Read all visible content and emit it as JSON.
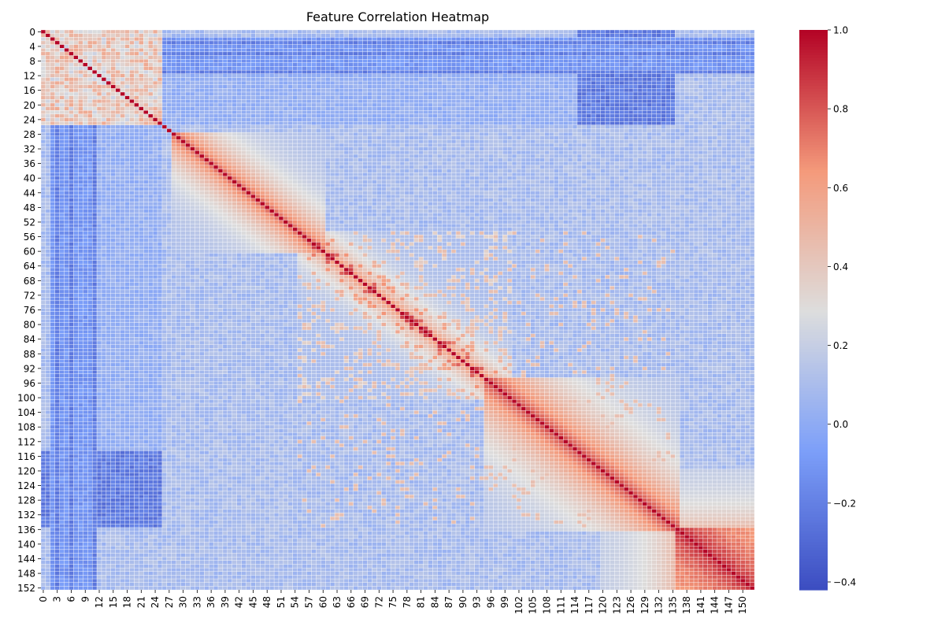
{
  "chart_data": {
    "type": "heatmap",
    "title": "Feature Correlation Heatmap",
    "xlabel": "",
    "ylabel": "",
    "n": 153,
    "x_tick_labels": [
      "0",
      "3",
      "6",
      "9",
      "12",
      "15",
      "18",
      "21",
      "24",
      "27",
      "30",
      "33",
      "36",
      "39",
      "42",
      "45",
      "48",
      "51",
      "54",
      "57",
      "60",
      "63",
      "66",
      "69",
      "72",
      "75",
      "78",
      "81",
      "84",
      "87",
      "90",
      "93",
      "96",
      "99",
      "102",
      "105",
      "108",
      "111",
      "114",
      "117",
      "120",
      "123",
      "126",
      "129",
      "132",
      "135",
      "138",
      "141",
      "144",
      "147",
      "150"
    ],
    "y_tick_labels": [
      "0",
      "4",
      "8",
      "12",
      "16",
      "20",
      "24",
      "28",
      "32",
      "36",
      "40",
      "44",
      "48",
      "52",
      "56",
      "60",
      "64",
      "68",
      "72",
      "76",
      "80",
      "84",
      "88",
      "92",
      "96",
      "100",
      "104",
      "108",
      "112",
      "116",
      "120",
      "124",
      "128",
      "132",
      "136",
      "140",
      "144",
      "148",
      "152"
    ],
    "colorbar": {
      "min": -0.42,
      "max": 1.0,
      "colormap": "coolwarm",
      "tick_values": [
        -0.4,
        -0.2,
        0.0,
        0.2,
        0.4,
        0.6,
        0.8,
        1.0
      ],
      "tick_labels": [
        "−0.4",
        "−0.2",
        "0.0",
        "0.2",
        "0.4",
        "0.6",
        "0.8",
        "1.0"
      ]
    },
    "diagonal_value": 1.0,
    "baseline_value": 0.1,
    "patterns": [
      {
        "region": "rows 0-25 x cols 0-25",
        "value": 0.5,
        "description": "moderate positive block among first features"
      },
      {
        "region": "rows 0-25 x cols 115-135",
        "value": -0.3,
        "description": "negative correlation band"
      },
      {
        "region": "cols 3-11 x rows 25-152",
        "value": -0.25,
        "description": "negative vertical stripes"
      },
      {
        "region": "rows 30-55 x cols 30-55",
        "value": 0.55,
        "description": "wide positive band near diagonal"
      },
      {
        "region": "rows 100-135 x cols 100-135",
        "value": 0.6,
        "description": "broad positive band near diagonal"
      },
      {
        "region": "rows 137-152 x cols 137-152",
        "value": 0.85,
        "description": "strong positive block"
      }
    ],
    "grid": false,
    "legend": "colorbar-right"
  }
}
